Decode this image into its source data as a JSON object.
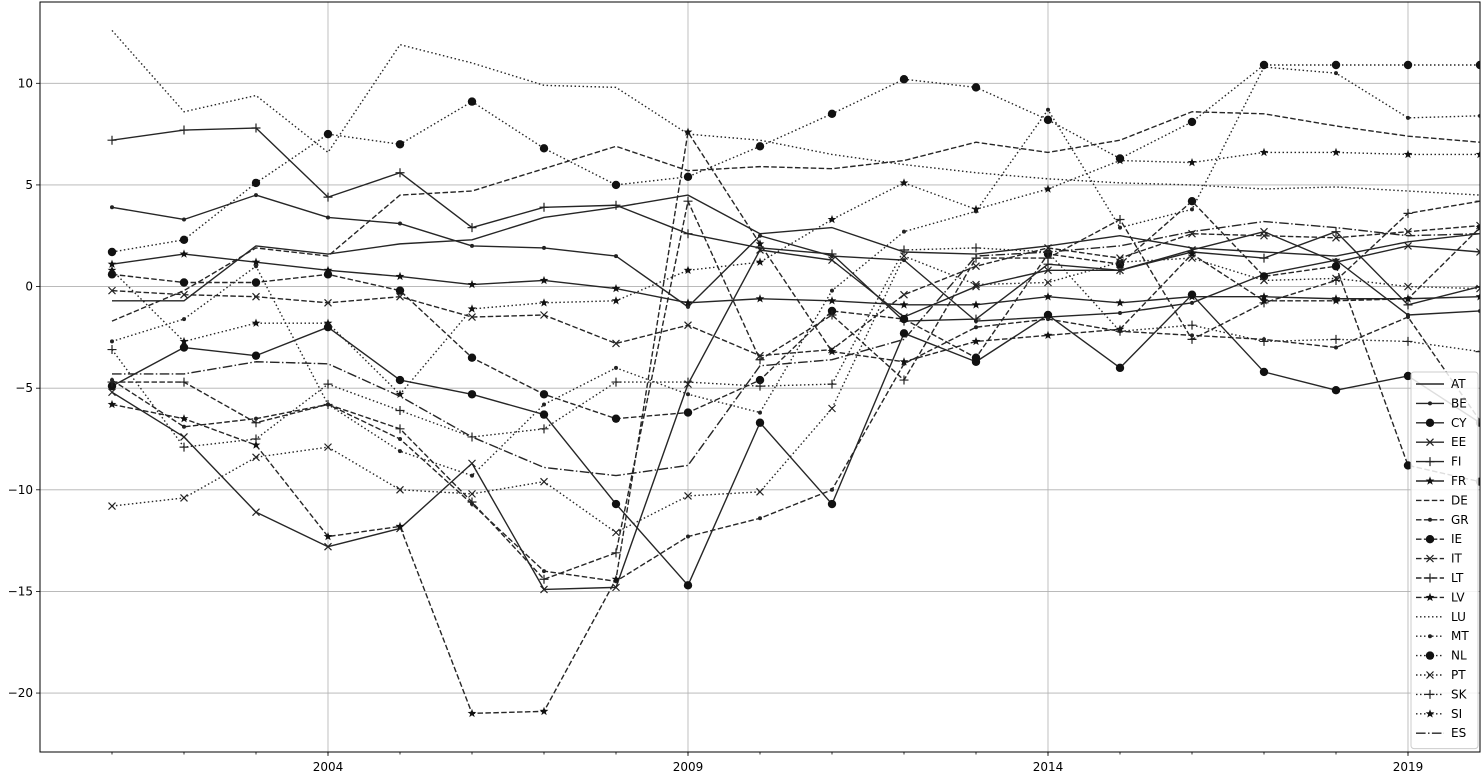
{
  "chart_data": {
    "type": "line",
    "title": "",
    "xlabel": "",
    "ylabel": "",
    "xlim": [
      2000,
      2020
    ],
    "ylim": [
      -22.9,
      14
    ],
    "xticks": [
      2004,
      2009,
      2014,
      2019
    ],
    "yticks": [
      10,
      5,
      0,
      -5,
      -10,
      -15,
      -20
    ],
    "xtick_labels": [
      "2004",
      "2009",
      "2014",
      "2019"
    ],
    "ytick_labels": [
      "10",
      "5",
      "0",
      "−5",
      "−10",
      "−15",
      "−20"
    ],
    "grid": true,
    "legend_position": "lower-right",
    "x": [
      2001,
      2002,
      2003,
      2004,
      2005,
      2006,
      2007,
      2008,
      2009,
      2010,
      2011,
      2012,
      2013,
      2014,
      2015,
      2016,
      2017,
      2018,
      2019,
      2020
    ],
    "series": [
      {
        "name": "AT",
        "style": "solid",
        "marker": "none",
        "values": [
          -0.7,
          -0.7,
          2.0,
          1.6,
          2.1,
          2.3,
          3.4,
          3.9,
          4.5,
          2.6,
          2.9,
          1.7,
          1.6,
          2.0,
          2.5,
          1.9,
          1.7,
          1.5,
          2.2,
          2.6
        ]
      },
      {
        "name": "BE",
        "style": "solid",
        "marker": "dot",
        "values": [
          3.9,
          3.3,
          4.5,
          3.4,
          3.1,
          2.0,
          1.9,
          1.5,
          -1.0,
          2.5,
          1.5,
          1.3,
          -1.7,
          -1.5,
          -1.3,
          -0.8,
          0.6,
          1.3,
          -1.4,
          -1.2
        ]
      },
      {
        "name": "CY",
        "style": "solid",
        "marker": "circle",
        "values": [
          -4.9,
          -3.0,
          -3.4,
          -2.0,
          -4.6,
          -5.3,
          -6.3,
          -10.7,
          -14.7,
          -6.7,
          -10.7,
          -2.3,
          -3.7,
          -1.4,
          -4.0,
          -0.4,
          -4.2,
          -5.1,
          -4.4,
          -6.7
        ]
      },
      {
        "name": "EE",
        "style": "solid",
        "marker": "x",
        "values": [
          -5.2,
          -7.4,
          -11.1,
          -12.8,
          -11.9,
          -8.7,
          -14.9,
          -14.8,
          -4.8,
          1.8,
          1.3,
          -1.5,
          0.0,
          0.8,
          0.8,
          1.8,
          2.7,
          1.2,
          2.0,
          1.7
        ]
      },
      {
        "name": "FI",
        "style": "solid",
        "marker": "plus",
        "values": [
          7.2,
          7.7,
          7.8,
          4.4,
          5.6,
          2.9,
          3.9,
          4.0,
          2.6,
          1.9,
          1.6,
          -1.7,
          -1.6,
          1.1,
          0.8,
          1.7,
          1.4,
          2.7,
          -0.9,
          0.0
        ]
      },
      {
        "name": "FR",
        "style": "solid",
        "marker": "star",
        "values": [
          1.1,
          1.6,
          1.2,
          0.8,
          0.5,
          0.1,
          0.3,
          -0.1,
          -0.8,
          -0.6,
          -0.7,
          -0.9,
          -0.9,
          -0.5,
          -0.8,
          -0.5,
          -0.5,
          -0.6,
          -0.6,
          -0.5
        ]
      },
      {
        "name": "DE",
        "style": "dashed",
        "marker": "none",
        "values": [
          -1.7,
          -0.2,
          1.9,
          1.5,
          4.5,
          4.7,
          5.8,
          6.9,
          5.7,
          5.9,
          5.8,
          6.2,
          7.1,
          6.6,
          7.2,
          8.6,
          8.5,
          7.9,
          7.4,
          7.1
        ]
      },
      {
        "name": "GR",
        "style": "dashed",
        "marker": "dot",
        "values": [
          -4.6,
          -6.9,
          -6.5,
          -5.8,
          -7.5,
          -10.7,
          -14.0,
          -14.5,
          -12.3,
          -11.4,
          -10.0,
          -3.8,
          -2.0,
          -1.6,
          -2.2,
          -2.4,
          -2.6,
          -3.0,
          -1.5,
          -6.6
        ]
      },
      {
        "name": "IE",
        "style": "dashed",
        "marker": "circle",
        "values": [
          0.6,
          0.2,
          0.2,
          0.6,
          -0.2,
          -3.5,
          -5.3,
          -6.5,
          -6.2,
          -4.6,
          -1.2,
          -1.6,
          -3.5,
          1.6,
          1.1,
          4.2,
          0.5,
          1.0,
          -8.8,
          -9.6
        ]
      },
      {
        "name": "IT",
        "style": "dashed",
        "marker": "x",
        "values": [
          -0.2,
          -0.4,
          -0.5,
          -0.8,
          -0.5,
          -1.5,
          -1.4,
          -2.8,
          -1.9,
          -3.4,
          -3.1,
          -0.4,
          1.0,
          1.9,
          1.4,
          2.6,
          2.5,
          2.4,
          2.7,
          3.0
        ]
      },
      {
        "name": "LT",
        "style": "dashed",
        "marker": "plus",
        "values": [
          -4.7,
          -4.7,
          -6.7,
          -5.8,
          -7.0,
          -10.6,
          -14.4,
          -13.1,
          4.2,
          -3.6,
          -1.4,
          -4.6,
          1.4,
          1.4,
          3.3,
          -2.6,
          -0.8,
          0.3,
          3.6,
          4.2
        ]
      },
      {
        "name": "LV",
        "style": "dashed",
        "marker": "star",
        "values": [
          -5.8,
          -6.5,
          -7.8,
          -12.3,
          -11.8,
          -21.0,
          -20.9,
          -14.4,
          7.6,
          2.1,
          -3.2,
          -3.7,
          -2.7,
          -2.4,
          -2.1,
          1.6,
          -0.7,
          -0.7,
          -0.6,
          2.9
        ]
      },
      {
        "name": "LU",
        "style": "dotted",
        "marker": "none",
        "values": [
          12.6,
          8.6,
          9.4,
          6.6,
          11.9,
          11.0,
          9.9,
          9.8,
          7.5,
          7.2,
          6.5,
          6.0,
          5.6,
          5.3,
          5.1,
          5.0,
          4.8,
          4.9,
          4.7,
          4.5
        ]
      },
      {
        "name": "MT",
        "style": "dotted",
        "marker": "dot",
        "values": [
          -2.7,
          -1.6,
          1.0,
          -5.8,
          -8.1,
          -9.3,
          -5.8,
          -4.0,
          -5.3,
          -6.2,
          -0.2,
          2.7,
          3.7,
          8.7,
          2.9,
          3.8,
          10.8,
          10.5,
          8.3,
          8.4
        ]
      },
      {
        "name": "NL",
        "style": "dotted",
        "marker": "circle",
        "values": [
          1.7,
          2.3,
          5.1,
          7.5,
          7.0,
          9.1,
          6.8,
          5.0,
          5.4,
          6.9,
          8.5,
          10.2,
          9.8,
          8.2,
          6.3,
          8.1,
          10.9,
          10.9,
          10.9,
          10.9
        ]
      },
      {
        "name": "PT",
        "style": "dotted",
        "marker": "x",
        "values": [
          -10.8,
          -10.4,
          -8.4,
          -7.9,
          -10.0,
          -10.2,
          -9.6,
          -12.1,
          -10.3,
          -10.1,
          -6.0,
          1.5,
          0.1,
          0.2,
          1.2,
          1.4,
          0.3,
          0.4,
          0.0,
          -0.1
        ]
      },
      {
        "name": "SK",
        "style": "dotted",
        "marker": "plus",
        "values": [
          -3.1,
          -7.9,
          -7.5,
          -4.8,
          -6.1,
          -7.4,
          -7.0,
          -4.7,
          -4.7,
          -4.9,
          -4.8,
          1.8,
          1.9,
          1.7,
          -2.2,
          -1.9,
          -2.7,
          -2.6,
          -2.7,
          -3.2
        ]
      },
      {
        "name": "SI",
        "style": "dotted",
        "marker": "star",
        "values": [
          0.8,
          -2.7,
          -1.8,
          -1.8,
          -5.3,
          -1.1,
          -0.8,
          -0.7,
          0.8,
          1.2,
          3.3,
          5.1,
          3.8,
          4.8,
          6.2,
          6.1,
          6.6,
          6.6,
          6.5,
          6.5
        ]
      },
      {
        "name": "ES",
        "style": "dashdot",
        "marker": "none",
        "values": [
          -4.3,
          -4.3,
          -3.7,
          -3.8,
          -5.4,
          -7.4,
          -8.9,
          -9.3,
          -8.8,
          -3.9,
          -3.6,
          -2.6,
          1.5,
          1.7,
          2.0,
          2.7,
          3.2,
          2.9,
          2.5,
          2.6
        ]
      }
    ]
  }
}
